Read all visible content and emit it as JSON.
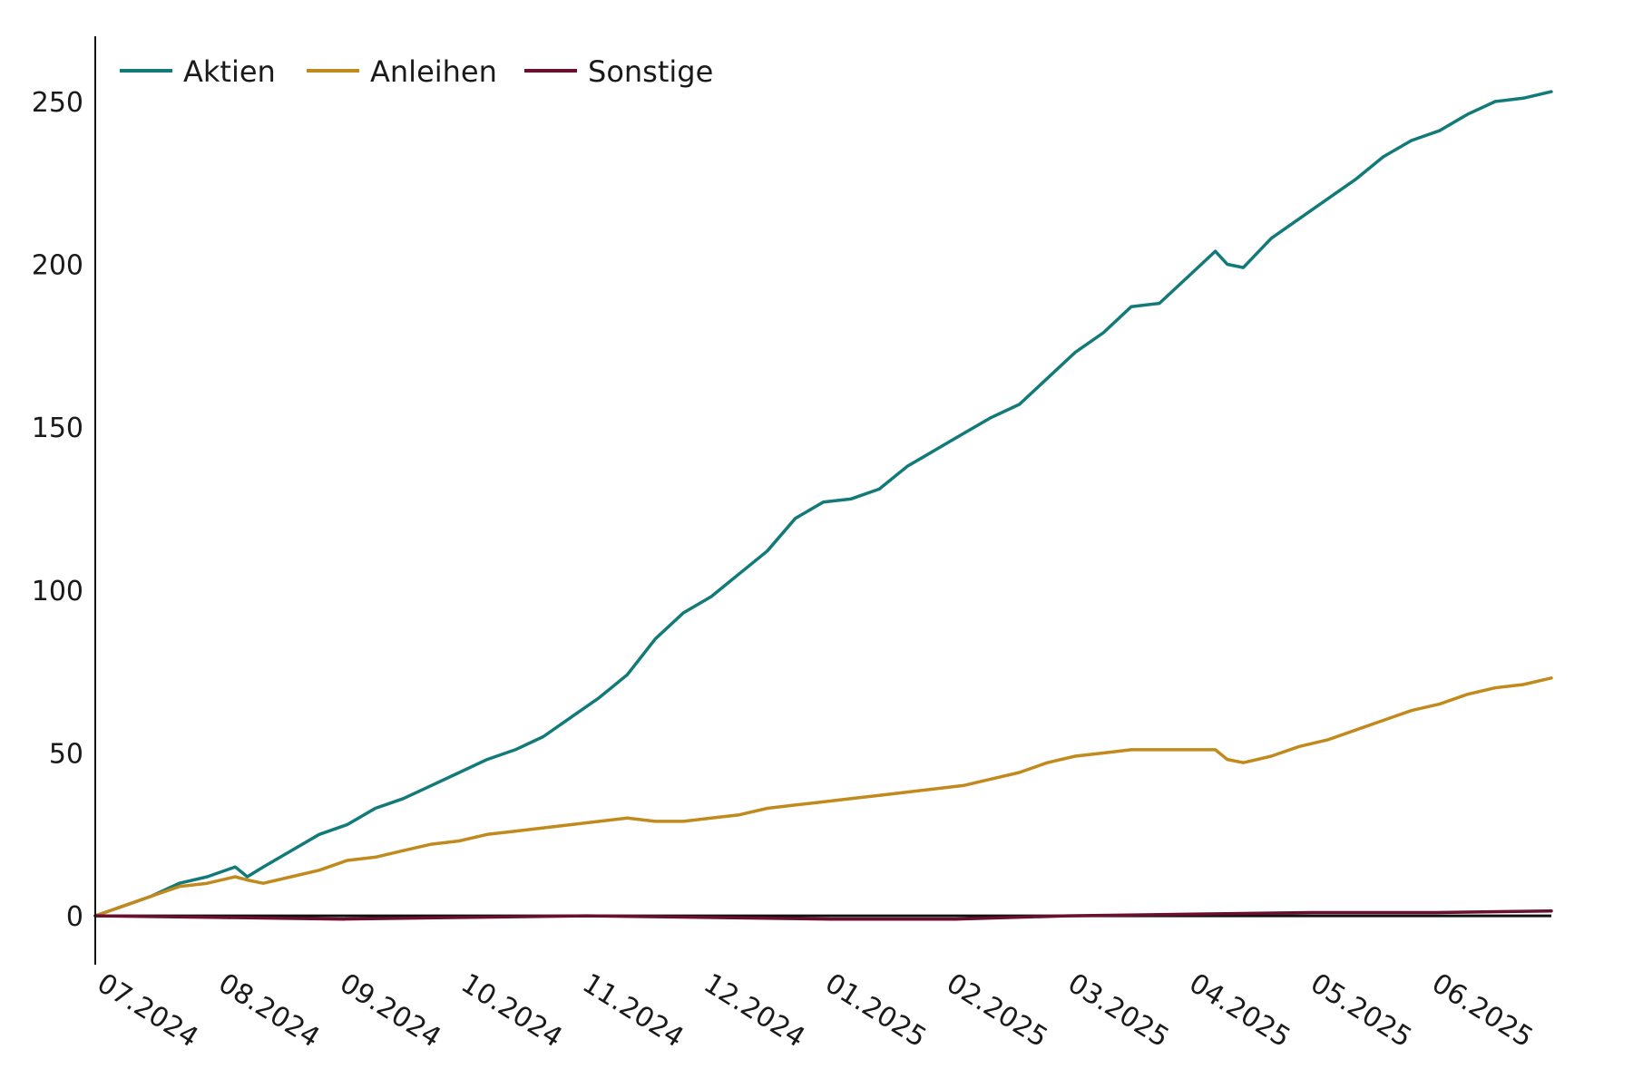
{
  "chart_data": {
    "type": "line",
    "title": "",
    "xlabel": "",
    "ylabel": "",
    "ylim": [
      -15,
      270
    ],
    "yticks": [
      0,
      50,
      100,
      150,
      200,
      250
    ],
    "x_ticks": [
      "07.2024",
      "08.2024",
      "09.2024",
      "10.2024",
      "11.2024",
      "12.2024",
      "01.2025",
      "02.2025",
      "03.2025",
      "04.2025",
      "05.2025",
      "06.2025"
    ],
    "x_range": [
      "2024-07-01",
      "2025-06-30"
    ],
    "grid": false,
    "legend": "top-left",
    "series": [
      {
        "name": "Aktien",
        "color": "#127a78",
        "points": [
          [
            "2024-07-01",
            0
          ],
          [
            "2024-07-08",
            3
          ],
          [
            "2024-07-15",
            6
          ],
          [
            "2024-07-22",
            10
          ],
          [
            "2024-07-29",
            12
          ],
          [
            "2024-08-05",
            15
          ],
          [
            "2024-08-08",
            12
          ],
          [
            "2024-08-12",
            15
          ],
          [
            "2024-08-19",
            20
          ],
          [
            "2024-08-26",
            25
          ],
          [
            "2024-09-02",
            28
          ],
          [
            "2024-09-09",
            33
          ],
          [
            "2024-09-16",
            36
          ],
          [
            "2024-09-23",
            40
          ],
          [
            "2024-09-30",
            44
          ],
          [
            "2024-10-07",
            48
          ],
          [
            "2024-10-14",
            51
          ],
          [
            "2024-10-21",
            55
          ],
          [
            "2024-10-28",
            61
          ],
          [
            "2024-11-04",
            67
          ],
          [
            "2024-11-11",
            74
          ],
          [
            "2024-11-18",
            85
          ],
          [
            "2024-11-25",
            93
          ],
          [
            "2024-12-02",
            98
          ],
          [
            "2024-12-09",
            105
          ],
          [
            "2024-12-16",
            112
          ],
          [
            "2024-12-23",
            122
          ],
          [
            "2024-12-30",
            127
          ],
          [
            "2025-01-06",
            128
          ],
          [
            "2025-01-13",
            131
          ],
          [
            "2025-01-20",
            138
          ],
          [
            "2025-01-27",
            143
          ],
          [
            "2025-02-03",
            148
          ],
          [
            "2025-02-10",
            153
          ],
          [
            "2025-02-17",
            157
          ],
          [
            "2025-02-24",
            165
          ],
          [
            "2025-03-03",
            173
          ],
          [
            "2025-03-10",
            179
          ],
          [
            "2025-03-17",
            187
          ],
          [
            "2025-03-24",
            188
          ],
          [
            "2025-03-31",
            196
          ],
          [
            "2025-04-07",
            204
          ],
          [
            "2025-04-10",
            200
          ],
          [
            "2025-04-14",
            199
          ],
          [
            "2025-04-21",
            208
          ],
          [
            "2025-04-28",
            214
          ],
          [
            "2025-05-05",
            220
          ],
          [
            "2025-05-12",
            226
          ],
          [
            "2025-05-19",
            233
          ],
          [
            "2025-05-26",
            238
          ],
          [
            "2025-06-02",
            241
          ],
          [
            "2025-06-09",
            246
          ],
          [
            "2025-06-16",
            250
          ],
          [
            "2025-06-23",
            251
          ],
          [
            "2025-06-30",
            253
          ]
        ]
      },
      {
        "name": "Anleihen",
        "color": "#c18a1d",
        "points": [
          [
            "2024-07-01",
            0
          ],
          [
            "2024-07-08",
            3
          ],
          [
            "2024-07-15",
            6
          ],
          [
            "2024-07-22",
            9
          ],
          [
            "2024-07-29",
            10
          ],
          [
            "2024-08-05",
            12
          ],
          [
            "2024-08-08",
            11
          ],
          [
            "2024-08-12",
            10
          ],
          [
            "2024-08-19",
            12
          ],
          [
            "2024-08-26",
            14
          ],
          [
            "2024-09-02",
            17
          ],
          [
            "2024-09-09",
            18
          ],
          [
            "2024-09-16",
            20
          ],
          [
            "2024-09-23",
            22
          ],
          [
            "2024-09-30",
            23
          ],
          [
            "2024-10-07",
            25
          ],
          [
            "2024-10-14",
            26
          ],
          [
            "2024-10-21",
            27
          ],
          [
            "2024-10-28",
            28
          ],
          [
            "2024-11-04",
            29
          ],
          [
            "2024-11-11",
            30
          ],
          [
            "2024-11-18",
            29
          ],
          [
            "2024-11-25",
            29
          ],
          [
            "2024-12-02",
            30
          ],
          [
            "2024-12-09",
            31
          ],
          [
            "2024-12-16",
            33
          ],
          [
            "2024-12-23",
            34
          ],
          [
            "2024-12-30",
            35
          ],
          [
            "2025-01-06",
            36
          ],
          [
            "2025-01-13",
            37
          ],
          [
            "2025-01-20",
            38
          ],
          [
            "2025-01-27",
            39
          ],
          [
            "2025-02-03",
            40
          ],
          [
            "2025-02-10",
            42
          ],
          [
            "2025-02-17",
            44
          ],
          [
            "2025-02-24",
            47
          ],
          [
            "2025-03-03",
            49
          ],
          [
            "2025-03-10",
            50
          ],
          [
            "2025-03-17",
            51
          ],
          [
            "2025-03-24",
            51
          ],
          [
            "2025-03-31",
            51
          ],
          [
            "2025-04-07",
            51
          ],
          [
            "2025-04-10",
            48
          ],
          [
            "2025-04-14",
            47
          ],
          [
            "2025-04-21",
            49
          ],
          [
            "2025-04-28",
            52
          ],
          [
            "2025-05-05",
            54
          ],
          [
            "2025-05-12",
            57
          ],
          [
            "2025-05-19",
            60
          ],
          [
            "2025-05-26",
            63
          ],
          [
            "2025-06-02",
            65
          ],
          [
            "2025-06-09",
            68
          ],
          [
            "2025-06-16",
            70
          ],
          [
            "2025-06-23",
            71
          ],
          [
            "2025-06-30",
            73
          ]
        ]
      },
      {
        "name": "Sonstige",
        "color": "#6a0f2e",
        "points": [
          [
            "2024-07-01",
            0
          ],
          [
            "2024-08-01",
            -0.5
          ],
          [
            "2024-09-01",
            -1
          ],
          [
            "2024-10-01",
            -0.5
          ],
          [
            "2024-11-01",
            0
          ],
          [
            "2024-12-01",
            -0.5
          ],
          [
            "2025-01-01",
            -1
          ],
          [
            "2025-02-01",
            -1
          ],
          [
            "2025-03-01",
            0
          ],
          [
            "2025-04-01",
            0.5
          ],
          [
            "2025-05-01",
            1
          ],
          [
            "2025-06-01",
            1
          ],
          [
            "2025-06-30",
            1.5
          ]
        ]
      }
    ]
  }
}
